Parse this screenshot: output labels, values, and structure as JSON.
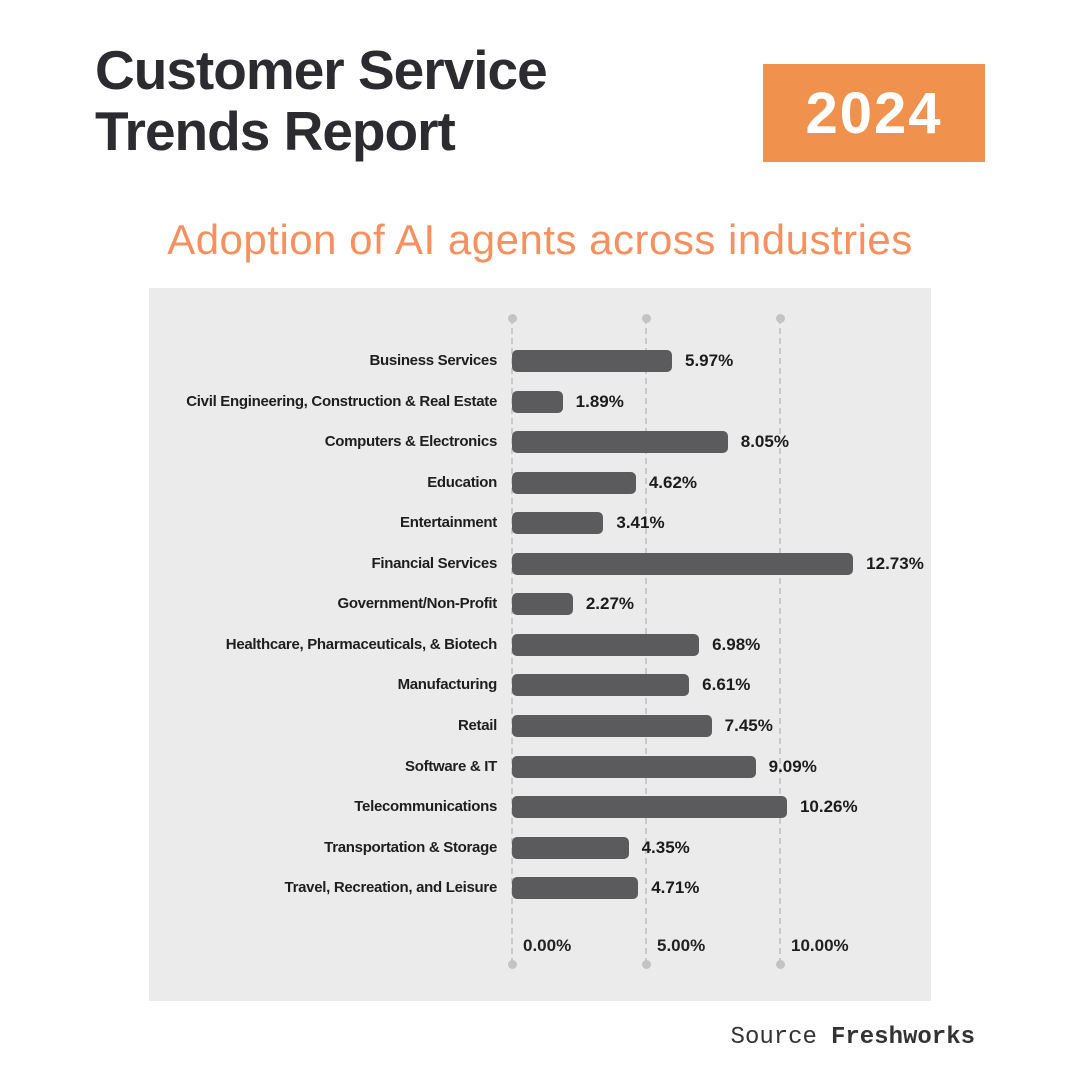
{
  "header": {
    "title_line1": "Customer Service",
    "title_line2": "Trends Report",
    "year_badge": "2024",
    "subtitle": "Adoption of AI agents across industries"
  },
  "footer": {
    "source_label": "Source",
    "source_value": "Freshworks"
  },
  "colors": {
    "badge_orange": "#F0914E",
    "subtitle_orange": "#F78F5F",
    "bar_gray": "#5B5B5D",
    "panel_background": "#EBEBEB",
    "title_charcoal": "#2B2B30"
  },
  "chart_data": {
    "type": "bar",
    "orientation": "horizontal",
    "title": "Adoption of AI agents across industries",
    "xlabel": "",
    "ylabel": "",
    "categories": [
      "Business Services",
      "Civil Engineering, Construction & Real Estate",
      "Computers & Electronics",
      "Education",
      "Entertainment",
      "Financial Services",
      "Government/Non-Profit",
      "Healthcare, Pharmaceuticals, & Biotech",
      "Manufacturing",
      "Retail",
      "Software & IT",
      "Telecommunications",
      "Transportation & Storage",
      "Travel, Recreation, and Leisure"
    ],
    "values": [
      5.97,
      1.89,
      8.05,
      4.62,
      3.41,
      12.73,
      2.27,
      6.98,
      6.61,
      7.45,
      9.09,
      10.26,
      4.35,
      4.71
    ],
    "value_labels": [
      "5.97%",
      "1.89%",
      "8.05%",
      "4.62%",
      "3.41%",
      "12.73%",
      "2.27%",
      "6.98%",
      "6.61%",
      "7.45%",
      "9.09%",
      "10.26%",
      "4.35%",
      "4.71%"
    ],
    "x_ticks": [
      {
        "label": "0.00%",
        "value": 0
      },
      {
        "label": "5.00%",
        "value": 5
      },
      {
        "label": "10.00%",
        "value": 10
      }
    ],
    "xlim": [
      0,
      13.5
    ],
    "grid": "vertical-dashed",
    "legend": "none",
    "bar_color": "#5B5B5D",
    "value_label_position": "right-of-bar"
  }
}
